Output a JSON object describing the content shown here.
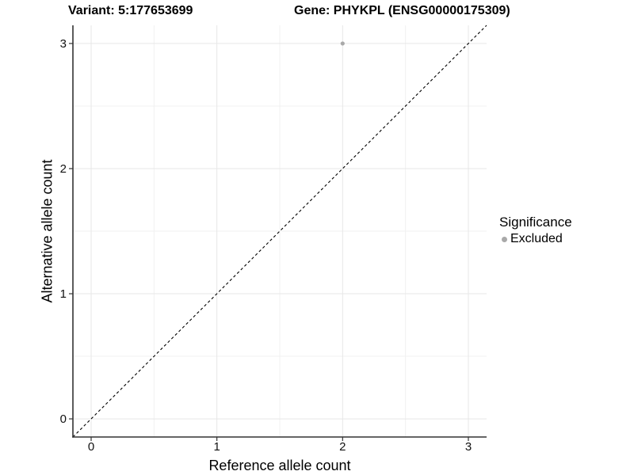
{
  "chart_data": {
    "type": "scatter",
    "titles": {
      "left": "Variant: 5:177653699",
      "right": "Gene: PHYKPL (ENSG00000175309)"
    },
    "xlabel": "Reference allele count",
    "ylabel": "Alternative allele count",
    "xlim": [
      -0.145,
      3.145
    ],
    "ylim": [
      -0.145,
      3.145
    ],
    "x_ticks": [
      0,
      1,
      2,
      3
    ],
    "y_ticks": [
      0,
      1,
      2,
      3
    ],
    "x_minor_ticks": [
      0.5,
      1.5,
      2.5
    ],
    "y_minor_ticks": [
      0.5,
      1.5,
      2.5
    ],
    "grid": "major and minor gridlines, white panel background",
    "identity_line": {
      "equation": "y = x",
      "style": "dashed",
      "color": "#000000"
    },
    "legend": {
      "title": "Significance",
      "position": "right",
      "items": [
        {
          "label": "Excluded",
          "color": "#a9a9a9"
        }
      ]
    },
    "series": [
      {
        "name": "Excluded",
        "color": "#a9a9a9",
        "points": [
          {
            "x": 2,
            "y": 3
          }
        ]
      }
    ]
  },
  "colors": {
    "background": "#ffffff",
    "grid_major": "#e7e7e7",
    "grid_minor": "#f1f1f1",
    "axis_line": "#333333",
    "tick_text": "#111111"
  }
}
